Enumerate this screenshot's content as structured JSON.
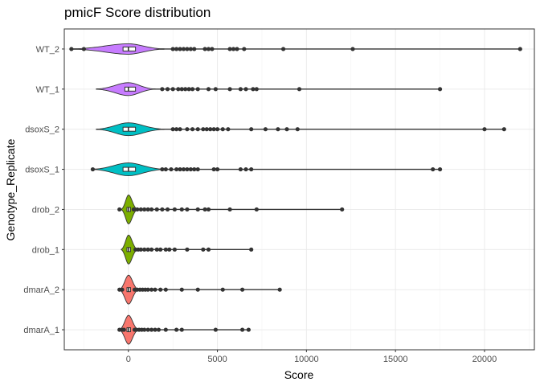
{
  "chart_data": {
    "type": "violin",
    "title": "pmicF Score distribution",
    "xlabel": "Score",
    "ylabel": "Genotype_Replicate",
    "xlim": [
      -3600,
      22800
    ],
    "xticks": [
      0,
      5000,
      10000,
      15000,
      20000
    ],
    "xtick_labels": [
      "0",
      "5000",
      "10000",
      "15000",
      "20000"
    ],
    "grid": true,
    "legend": "none",
    "categories": [
      "dmarA_1",
      "dmarA_2",
      "drob_1",
      "drob_2",
      "dsoxS_1",
      "dsoxS_2",
      "WT_1",
      "WT_2"
    ],
    "series": [
      {
        "category": "dmarA_1",
        "color": "#F8766D",
        "min": -500,
        "q1": -80,
        "median": 10,
        "q3": 120,
        "max": 6800,
        "violin_range": [
          -500,
          550
        ],
        "violin_halfwidth": 0.36,
        "outliers": [
          -500,
          -350,
          -250,
          350,
          450,
          600,
          750,
          900,
          1100,
          1300,
          1500,
          1700,
          2100,
          2700,
          3000,
          4900,
          6400,
          6750
        ]
      },
      {
        "category": "dmarA_2",
        "color": "#F8766D",
        "min": -500,
        "q1": -80,
        "median": 10,
        "q3": 120,
        "max": 8500,
        "violin_range": [
          -500,
          550
        ],
        "violin_halfwidth": 0.36,
        "outliers": [
          -500,
          -350,
          350,
          500,
          650,
          800,
          950,
          1100,
          1300,
          1500,
          1800,
          2100,
          3000,
          3900,
          5300,
          6400,
          8500
        ]
      },
      {
        "category": "drob_1",
        "color": "#7CAE00",
        "min": -300,
        "q1": -80,
        "median": 10,
        "q3": 120,
        "max": 6900,
        "violin_range": [
          -400,
          500
        ],
        "violin_halfwidth": 0.36,
        "outliers": [
          400,
          550,
          700,
          900,
          1100,
          1300,
          1600,
          1800,
          2100,
          2300,
          2600,
          3300,
          4200,
          4500,
          6900
        ]
      },
      {
        "category": "drob_2",
        "color": "#7CAE00",
        "min": -500,
        "q1": -80,
        "median": 10,
        "q3": 120,
        "max": 12000,
        "violin_range": [
          -400,
          500
        ],
        "violin_halfwidth": 0.36,
        "outliers": [
          -500,
          300,
          500,
          700,
          900,
          1100,
          1300,
          1600,
          1900,
          2200,
          2600,
          3000,
          3300,
          3900,
          4300,
          4500,
          5700,
          7200,
          12000
        ]
      },
      {
        "category": "dsoxS_1",
        "color": "#00BFC4",
        "min": -2000,
        "q1": -300,
        "median": 0,
        "q3": 400,
        "max": 17500,
        "violin_range": [
          -2000,
          2000
        ],
        "violin_halfwidth": 0.16,
        "outliers": [
          -2000,
          1900,
          2100,
          2400,
          2700,
          2900,
          3100,
          3300,
          3500,
          3700,
          3900,
          4800,
          5000,
          6300,
          6600,
          6900,
          17100,
          17500
        ]
      },
      {
        "category": "dsoxS_2",
        "color": "#00BFC4",
        "min": -1800,
        "q1": -300,
        "median": 0,
        "q3": 400,
        "max": 21100,
        "violin_range": [
          -1800,
          2000
        ],
        "violin_halfwidth": 0.16,
        "outliers": [
          2500,
          2700,
          2900,
          3300,
          3600,
          3900,
          4200,
          4400,
          4600,
          4800,
          5000,
          5300,
          5600,
          6900,
          7700,
          8400,
          8900,
          9500,
          20000,
          21100
        ]
      },
      {
        "category": "WT_1",
        "color": "#C77CFF",
        "min": -1800,
        "q1": -200,
        "median": 0,
        "q3": 400,
        "max": 17500,
        "violin_range": [
          -1800,
          1500
        ],
        "violin_halfwidth": 0.16,
        "outliers": [
          1900,
          2200,
          2500,
          2800,
          3000,
          3200,
          3400,
          3600,
          3900,
          4500,
          4900,
          5700,
          6300,
          6600,
          7000,
          7200,
          9600,
          17500
        ]
      },
      {
        "category": "WT_2",
        "color": "#C77CFF",
        "min": -3200,
        "q1": -300,
        "median": 0,
        "q3": 400,
        "max": 22000,
        "violin_range": [
          -3200,
          2000
        ],
        "violin_halfwidth": 0.13,
        "outliers": [
          -3200,
          -2500,
          2500,
          2700,
          2900,
          3100,
          3300,
          3500,
          3700,
          4300,
          4500,
          4700,
          5700,
          5900,
          6100,
          6500,
          8700,
          12600,
          22000
        ]
      }
    ]
  }
}
